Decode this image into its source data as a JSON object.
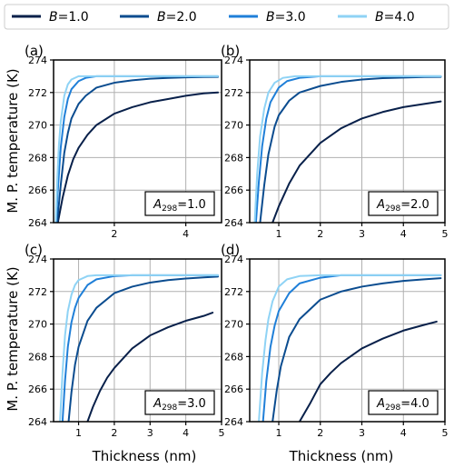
{
  "legend": {
    "entries": [
      {
        "var": "B",
        "value": "=1.0",
        "color": "#08204a"
      },
      {
        "var": "B",
        "value": "=2.0",
        "color": "#0b4c8f"
      },
      {
        "var": "B",
        "value": "=3.0",
        "color": "#1f7fd8"
      },
      {
        "var": "B",
        "value": "=4.0",
        "color": "#8fd3f5"
      }
    ]
  },
  "ylabel": "M. P. temperature (K)",
  "xlabel": "Thickness (nm)",
  "chart_data": [
    {
      "type": "line",
      "panel_label": "(a)",
      "annotation": {
        "sym": "A",
        "sub": "298",
        "value": "=1.0"
      },
      "xlim": [
        0.3,
        5.0
      ],
      "ylim": [
        264,
        274
      ],
      "xticks": [
        2,
        4
      ],
      "yticks": [
        264,
        266,
        268,
        270,
        272,
        274
      ],
      "series": [
        {
          "x": [
            0.42,
            0.55,
            0.7,
            0.85,
            1.0,
            1.25,
            1.5,
            2.0,
            2.5,
            3.0,
            3.5,
            4.0,
            4.5,
            4.9
          ],
          "y": [
            264.0,
            265.5,
            266.9,
            267.9,
            268.6,
            269.4,
            270.0,
            270.7,
            271.1,
            271.4,
            271.6,
            271.8,
            271.95,
            272.0
          ]
        },
        {
          "x": [
            0.4,
            0.5,
            0.6,
            0.7,
            0.8,
            1.0,
            1.2,
            1.5,
            2.0,
            2.5,
            3.0,
            3.5,
            4.0,
            4.5,
            4.9
          ],
          "y": [
            264.0,
            266.3,
            268.3,
            269.5,
            270.4,
            271.3,
            271.8,
            272.3,
            272.6,
            272.75,
            272.85,
            272.9,
            272.93,
            272.95,
            272.96
          ]
        },
        {
          "x": [
            0.37,
            0.42,
            0.5,
            0.6,
            0.7,
            0.8,
            1.0,
            1.2,
            1.5,
            2.0,
            3.0,
            4.0,
            4.9
          ],
          "y": [
            264.0,
            266.0,
            268.6,
            270.5,
            271.6,
            272.2,
            272.7,
            272.9,
            273.0,
            273.0,
            273.0,
            273.0,
            273.0
          ]
        },
        {
          "x": [
            0.36,
            0.4,
            0.45,
            0.5,
            0.6,
            0.7,
            0.8,
            1.0,
            1.2,
            2.0,
            3.0,
            4.0,
            4.9
          ],
          "y": [
            264.0,
            266.5,
            268.8,
            270.2,
            271.8,
            272.5,
            272.8,
            273.0,
            273.0,
            273.0,
            273.0,
            273.0,
            273.0
          ]
        }
      ]
    },
    {
      "type": "line",
      "panel_label": "(b)",
      "annotation": {
        "sym": "A",
        "sub": "298",
        "value": "=2.0"
      },
      "xlim": [
        0.3,
        5.0
      ],
      "ylim": [
        264,
        274
      ],
      "xticks": [
        1,
        2,
        3,
        4,
        5
      ],
      "yticks": [
        264,
        266,
        268,
        270,
        272,
        274
      ],
      "series": [
        {
          "x": [
            0.85,
            1.0,
            1.25,
            1.5,
            2.0,
            2.5,
            3.0,
            3.5,
            4.0,
            4.5,
            4.9
          ],
          "y": [
            264.0,
            265.0,
            266.4,
            267.5,
            268.9,
            269.8,
            270.4,
            270.8,
            271.1,
            271.3,
            271.45
          ]
        },
        {
          "x": [
            0.55,
            0.65,
            0.75,
            0.9,
            1.0,
            1.25,
            1.5,
            2.0,
            2.5,
            3.0,
            3.5,
            4.0,
            4.5,
            4.9
          ],
          "y": [
            264.0,
            266.3,
            268.2,
            269.9,
            270.6,
            271.5,
            272.0,
            272.4,
            272.65,
            272.8,
            272.88,
            272.92,
            272.95,
            272.96
          ]
        },
        {
          "x": [
            0.45,
            0.52,
            0.6,
            0.7,
            0.8,
            1.0,
            1.2,
            1.5,
            2.0,
            3.0,
            4.0,
            4.9
          ],
          "y": [
            264.0,
            266.5,
            268.7,
            270.4,
            271.4,
            272.3,
            272.7,
            272.9,
            273.0,
            273.0,
            273.0,
            273.0
          ]
        },
        {
          "x": [
            0.42,
            0.48,
            0.55,
            0.65,
            0.75,
            0.9,
            1.1,
            1.4,
            2.0,
            3.0,
            4.0,
            4.9
          ],
          "y": [
            264.0,
            267.0,
            269.3,
            271.0,
            272.0,
            272.6,
            272.9,
            273.0,
            273.0,
            273.0,
            273.0,
            273.0
          ]
        }
      ]
    },
    {
      "type": "line",
      "panel_label": "(c)",
      "annotation": {
        "sym": "A",
        "sub": "298",
        "value": "=3.0"
      },
      "xlim": [
        0.3,
        5.0
      ],
      "ylim": [
        264,
        274
      ],
      "xticks": [
        1,
        2,
        3,
        4,
        5
      ],
      "yticks": [
        264,
        266,
        268,
        270,
        272,
        274
      ],
      "series": [
        {
          "x": [
            1.25,
            1.4,
            1.6,
            1.8,
            2.0,
            2.5,
            3.0,
            3.5,
            4.0,
            4.5,
            4.75
          ],
          "y": [
            264.0,
            264.9,
            265.9,
            266.7,
            267.3,
            268.5,
            269.3,
            269.8,
            270.2,
            270.5,
            270.7
          ]
        },
        {
          "x": [
            0.72,
            0.8,
            0.9,
            1.0,
            1.25,
            1.5,
            2.0,
            2.5,
            3.0,
            3.5,
            4.0,
            4.5,
            4.9
          ],
          "y": [
            264.0,
            265.8,
            267.5,
            268.6,
            270.2,
            271.0,
            271.9,
            272.3,
            272.55,
            272.7,
            272.8,
            272.87,
            272.92
          ]
        },
        {
          "x": [
            0.55,
            0.62,
            0.7,
            0.8,
            0.9,
            1.0,
            1.25,
            1.5,
            2.0,
            2.5,
            3.0,
            4.0,
            4.9
          ],
          "y": [
            264.0,
            266.5,
            268.6,
            270.1,
            271.0,
            271.6,
            272.4,
            272.75,
            272.95,
            273.0,
            273.0,
            273.0,
            273.0
          ]
        },
        {
          "x": [
            0.48,
            0.55,
            0.62,
            0.7,
            0.8,
            0.9,
            1.0,
            1.25,
            1.5,
            2.0,
            3.0,
            4.0,
            4.9
          ],
          "y": [
            264.0,
            267.0,
            269.3,
            270.8,
            271.8,
            272.4,
            272.7,
            272.95,
            273.0,
            273.0,
            273.0,
            273.0,
            273.0
          ]
        }
      ]
    },
    {
      "type": "line",
      "panel_label": "(d)",
      "annotation": {
        "sym": "A",
        "sub": "298",
        "value": "=4.0"
      },
      "xlim": [
        0.3,
        5.0
      ],
      "ylim": [
        264,
        274
      ],
      "xticks": [
        1,
        2,
        3,
        4,
        5
      ],
      "yticks": [
        264,
        266,
        268,
        270,
        272,
        274
      ],
      "series": [
        {
          "x": [
            1.5,
            1.75,
            2.0,
            2.25,
            2.5,
            3.0,
            3.5,
            4.0,
            4.5,
            4.8
          ],
          "y": [
            264.0,
            265.1,
            266.3,
            267.0,
            267.6,
            268.5,
            269.1,
            269.6,
            269.95,
            270.15
          ]
        },
        {
          "x": [
            0.85,
            0.95,
            1.05,
            1.25,
            1.5,
            2.0,
            2.5,
            3.0,
            3.5,
            4.0,
            4.5,
            4.9
          ],
          "y": [
            264.0,
            265.9,
            267.4,
            269.2,
            270.3,
            271.5,
            272.0,
            272.3,
            272.5,
            272.65,
            272.75,
            272.82
          ]
        },
        {
          "x": [
            0.62,
            0.7,
            0.8,
            0.9,
            1.0,
            1.25,
            1.5,
            2.0,
            2.5,
            3.0,
            4.0,
            4.9
          ],
          "y": [
            264.0,
            266.5,
            268.6,
            269.9,
            270.8,
            271.9,
            272.5,
            272.85,
            273.0,
            273.0,
            273.0,
            273.0
          ]
        },
        {
          "x": [
            0.52,
            0.6,
            0.68,
            0.75,
            0.85,
            1.0,
            1.2,
            1.5,
            2.0,
            3.0,
            4.0,
            4.9
          ],
          "y": [
            264.0,
            267.0,
            269.0,
            270.3,
            271.4,
            272.3,
            272.75,
            272.95,
            273.0,
            273.0,
            273.0,
            273.0
          ]
        }
      ]
    }
  ]
}
